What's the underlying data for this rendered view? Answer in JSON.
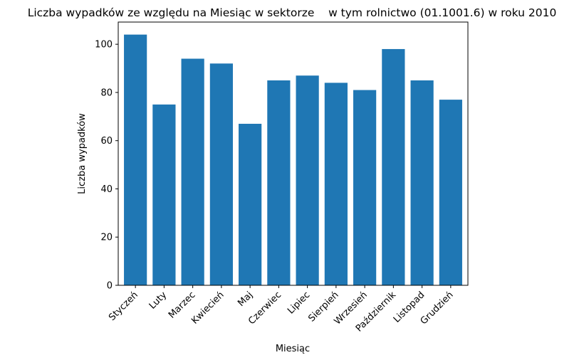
{
  "chart_data": {
    "type": "bar",
    "title": "Liczba wypadków ze względu na Miesiąc w sektorze    w tym rolnictwo (01.1001.6) w roku 2010",
    "xlabel": "Miesiąc",
    "ylabel": "Liczba wypadków",
    "categories": [
      "Styczeń",
      "Luty",
      "Marzec",
      "Kwiecień",
      "Maj",
      "Czerwiec",
      "Lipiec",
      "Sierpień",
      "Wrzesień",
      "Październik",
      "Listopad",
      "Grudzień"
    ],
    "values": [
      104,
      75,
      94,
      92,
      67,
      85,
      87,
      84,
      81,
      98,
      85,
      77
    ],
    "ylim": [
      0,
      109.2
    ],
    "yticks": [
      0,
      20,
      40,
      60,
      80,
      100
    ],
    "bar_color": "#1f77b4",
    "grid": false,
    "legend": "none"
  }
}
